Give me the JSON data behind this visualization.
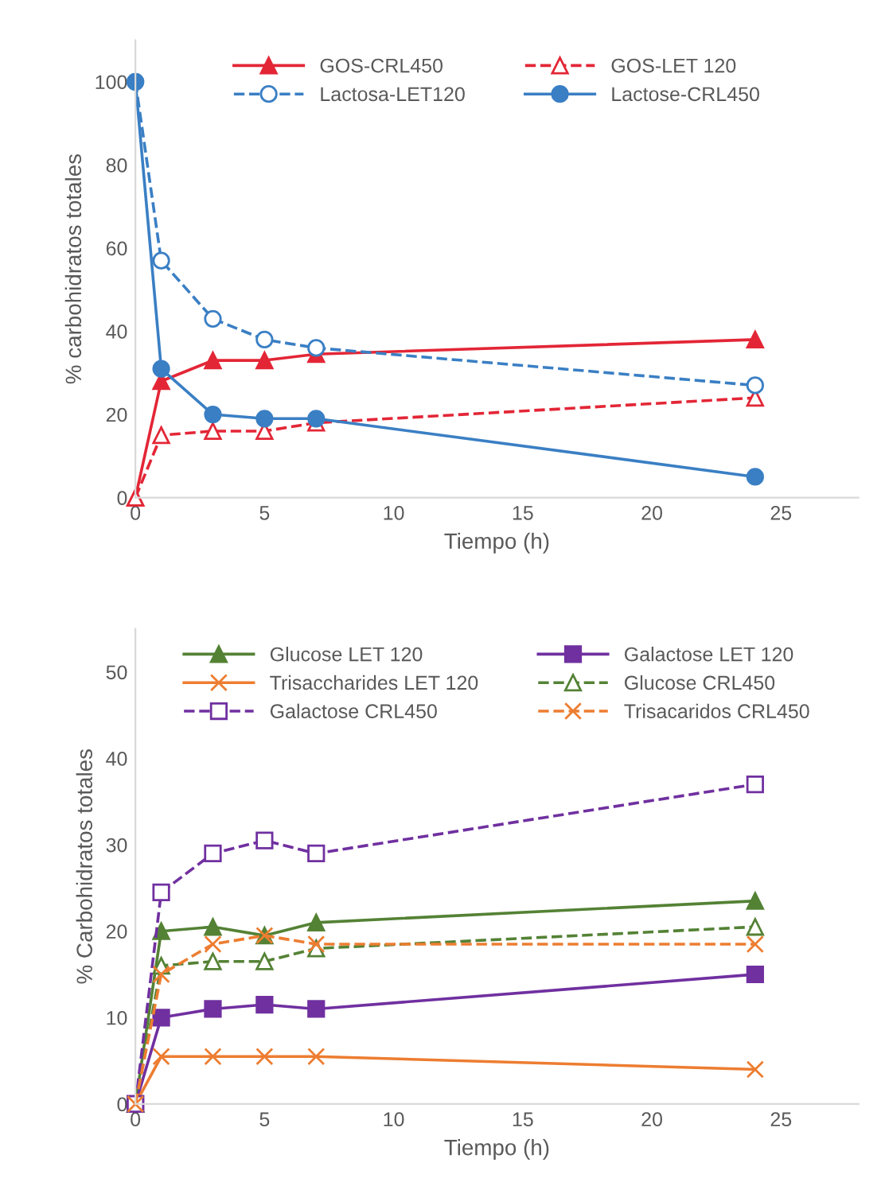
{
  "chart_data": [
    {
      "type": "line",
      "xlabel": "Tiempo (h)",
      "ylabel": "% carbohidratos totales",
      "x": [
        0,
        1,
        3,
        5,
        7,
        24
      ],
      "xlim": [
        0,
        28
      ],
      "xticks": [
        0,
        5,
        10,
        15,
        20,
        25
      ],
      "ylim": [
        0,
        110
      ],
      "yticks": [
        0,
        20,
        40,
        60,
        80,
        100
      ],
      "grid": false,
      "legend": "top",
      "series": [
        {
          "name": "GOS-CRL450",
          "color": "#e32636",
          "marker": "triangle",
          "line_style": "solid",
          "values": [
            0,
            28,
            33,
            33,
            34.5,
            38
          ]
        },
        {
          "name": "GOS-LET 120",
          "color": "#e32636",
          "marker": "triangle",
          "line_style": "dashed",
          "values": [
            0,
            15,
            16,
            16,
            18,
            24
          ]
        },
        {
          "name": "Lactosa-LET120",
          "color": "#3a7fc4",
          "marker": "circle",
          "line_style": "dashed",
          "values": [
            100,
            57,
            43,
            38,
            36,
            27
          ]
        },
        {
          "name": "Lactose-CRL450",
          "color": "#3a7fc4",
          "marker": "circle",
          "line_style": "solid",
          "values": [
            100,
            31,
            20,
            19,
            19,
            5
          ]
        }
      ]
    },
    {
      "type": "line",
      "xlabel": "Tiempo (h)",
      "ylabel": "% Carbohidratos totales",
      "x": [
        0,
        1,
        3,
        5,
        7,
        24
      ],
      "xlim": [
        0,
        28
      ],
      "xticks": [
        0,
        5,
        10,
        15,
        20,
        25
      ],
      "ylim": [
        0,
        55
      ],
      "yticks": [
        0,
        10,
        20,
        30,
        40,
        50
      ],
      "grid": false,
      "legend": "top",
      "series": [
        {
          "name": "Glucose LET 120",
          "color": "#548235",
          "marker": "triangle",
          "line_style": "solid",
          "values": [
            0,
            20,
            20.5,
            19.5,
            21,
            23.5
          ]
        },
        {
          "name": "Galactose LET 120",
          "color": "#7030a0",
          "marker": "square",
          "line_style": "solid",
          "values": [
            0,
            10,
            11,
            11.5,
            11,
            15
          ]
        },
        {
          "name": "Trisaccharides LET 120",
          "color": "#ed7d31",
          "marker": "cross",
          "line_style": "solid",
          "values": [
            0,
            5.5,
            5.5,
            5.5,
            5.5,
            4
          ]
        },
        {
          "name": "Glucose CRL450",
          "color": "#548235",
          "marker": "triangle",
          "line_style": "dashed",
          "values": [
            0,
            16,
            16.5,
            16.5,
            18,
            20.5
          ]
        },
        {
          "name": "Galactose CRL450",
          "color": "#7030a0",
          "marker": "square",
          "line_style": "dashed",
          "values": [
            0,
            24.5,
            29,
            30.5,
            29,
            37
          ]
        },
        {
          "name": "Trisacaridos CRL450",
          "color": "#ed7d31",
          "marker": "cross",
          "line_style": "dashed",
          "values": [
            0,
            15,
            18.5,
            19.5,
            18.5,
            18.5
          ]
        }
      ]
    }
  ]
}
